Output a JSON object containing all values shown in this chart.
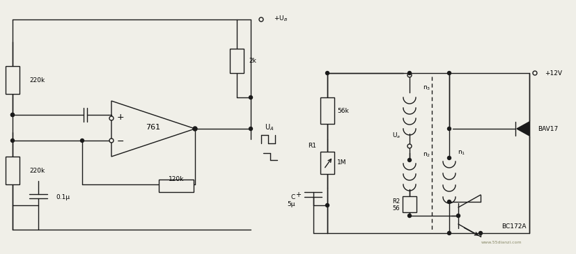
{
  "bg_color": "#f0efe8",
  "line_color": "#1a1a1a",
  "line_width": 1.0,
  "fig_width": 8.27,
  "fig_height": 3.65,
  "labels": {
    "UB": "+U$_B$",
    "UA": "U$_A$",
    "12V": "+12V",
    "220k_top": "220k",
    "220k_bot": "220k",
    "2k": "2k",
    "120k": "120k",
    "01u": "0.1μ",
    "56k": "56k",
    "R1": "R1",
    "1M": "1M",
    "R2": "R2",
    "56": "56",
    "C": "C",
    "5u": "5μ",
    "761": "761",
    "BAV17": "BAV17",
    "BC172A": "BC172A",
    "n1": "n$_1$",
    "n2": "n$_2$",
    "n3": "n$_3$",
    "Ua": "U$_a$",
    "watermark": "www.55dianzi.com"
  }
}
